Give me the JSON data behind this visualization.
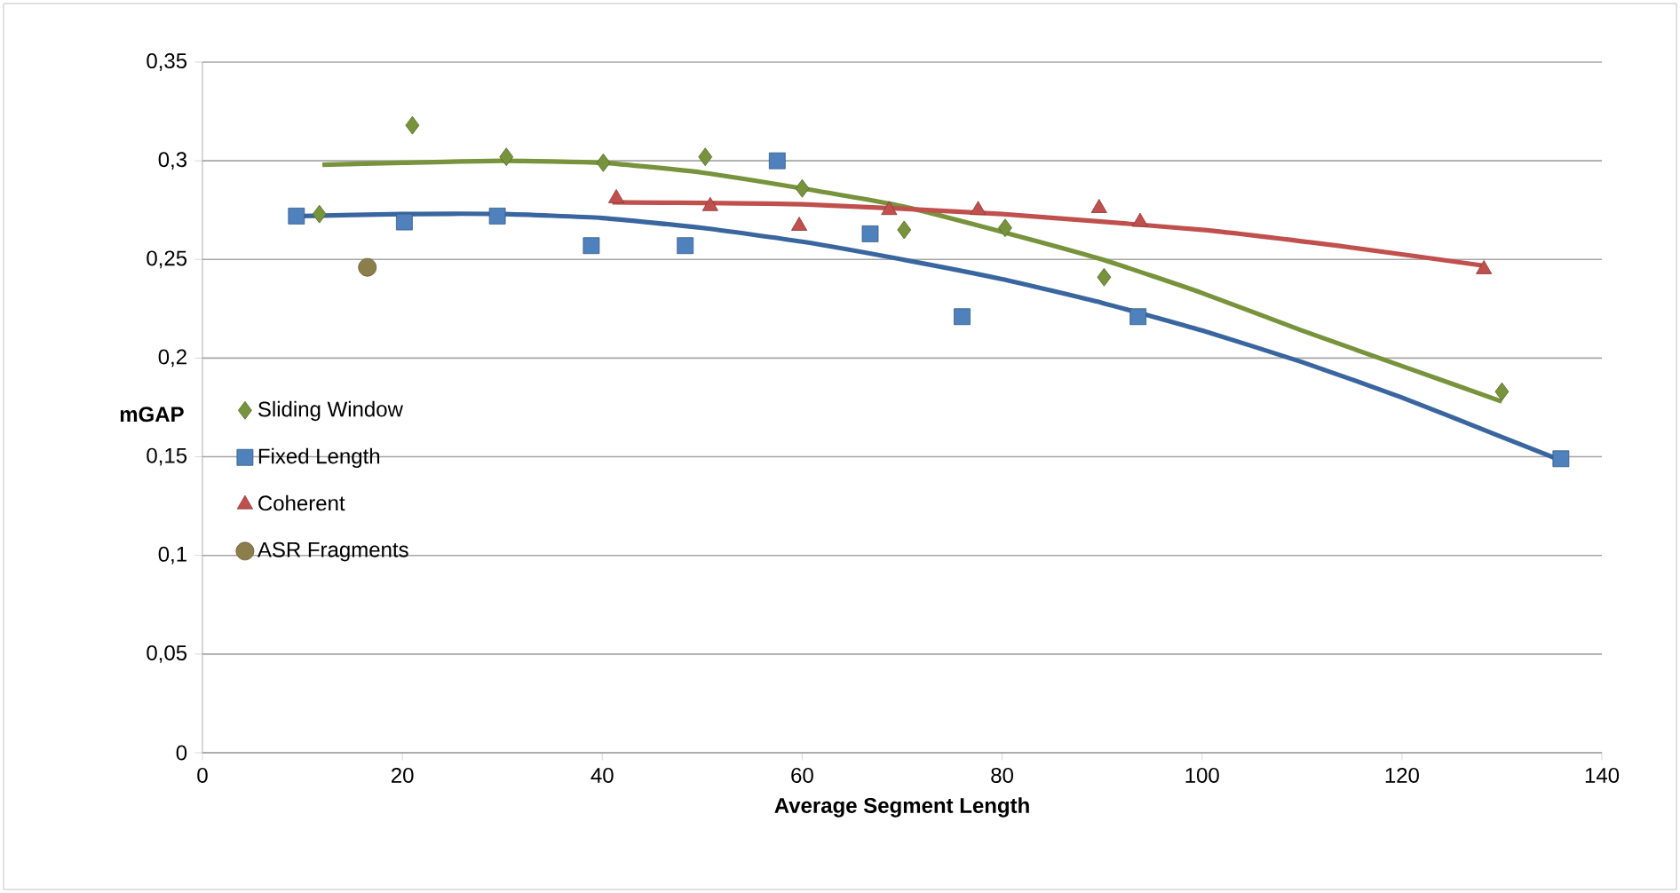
{
  "chart_data": {
    "type": "scatter",
    "xlabel": "Average Segment Length",
    "ylabel": "mGAP",
    "xlim": [
      0,
      140
    ],
    "xticks": [
      0,
      20,
      40,
      60,
      80,
      100,
      120,
      140
    ],
    "ylim": [
      0,
      0.35
    ],
    "yticks": [
      {
        "value": 0,
        "label": "0"
      },
      {
        "value": 0.05,
        "label": "0,05"
      },
      {
        "value": 0.1,
        "label": "0,1"
      },
      {
        "value": 0.15,
        "label": "0,15"
      },
      {
        "value": 0.2,
        "label": "0,2"
      },
      {
        "value": 0.25,
        "label": "0,25"
      },
      {
        "value": 0.3,
        "label": "0,3"
      },
      {
        "value": 0.35,
        "label": "0,35"
      }
    ],
    "grid": "y",
    "legend": "left",
    "series": [
      {
        "type": "line",
        "color": "#77933c",
        "x": [
          12,
          20,
          30,
          40,
          50,
          60,
          70,
          80,
          90,
          100,
          110,
          120,
          130
        ],
        "values": [
          0.298,
          0.299,
          0.3,
          0.299,
          0.294,
          0.286,
          0.277,
          0.264,
          0.25,
          0.233,
          0.214,
          0.196,
          0.178
        ]
      },
      {
        "type": "line",
        "color": "#3a66a0",
        "x": [
          10,
          20,
          30,
          40,
          50,
          60,
          70,
          80,
          90,
          100,
          110,
          120,
          130,
          136
        ],
        "values": [
          0.272,
          0.273,
          0.273,
          0.271,
          0.266,
          0.259,
          0.25,
          0.24,
          0.228,
          0.214,
          0.198,
          0.18,
          0.16,
          0.148
        ]
      },
      {
        "type": "line",
        "color": "#c0504d",
        "x": [
          41,
          60,
          80,
          100,
          115,
          128
        ],
        "values": [
          0.279,
          0.278,
          0.273,
          0.265,
          0.256,
          0.247
        ]
      },
      {
        "name": "Sliding Window",
        "marker": "diamond",
        "color": "#77933c",
        "x": [
          11.7,
          21,
          30.4,
          40.1,
          50.3,
          60,
          70.2,
          80.3,
          90.2,
          130
        ],
        "values": [
          0.273,
          0.318,
          0.302,
          0.299,
          0.302,
          0.286,
          0.265,
          0.266,
          0.241,
          0.183
        ]
      },
      {
        "name": "Fixed Length",
        "marker": "square",
        "color": "#4f81bd",
        "x": [
          9.4,
          20.2,
          29.5,
          38.9,
          48.3,
          57.5,
          66.8,
          76,
          93.6,
          135.9
        ],
        "values": [
          0.272,
          0.269,
          0.272,
          0.257,
          0.257,
          0.3,
          0.263,
          0.221,
          0.221,
          0.149
        ]
      },
      {
        "name": "Coherent",
        "marker": "triangle",
        "color": "#c0504d",
        "x": [
          41.4,
          50.8,
          59.7,
          68.7,
          77.6,
          89.7,
          93.8,
          128.2
        ],
        "values": [
          0.281,
          0.277,
          0.267,
          0.275,
          0.275,
          0.276,
          0.269,
          0.245
        ]
      },
      {
        "name": "ASR Fragments",
        "marker": "circle",
        "color": "#8c7e4a",
        "x": [
          16.5
        ],
        "values": [
          0.246
        ]
      }
    ]
  }
}
